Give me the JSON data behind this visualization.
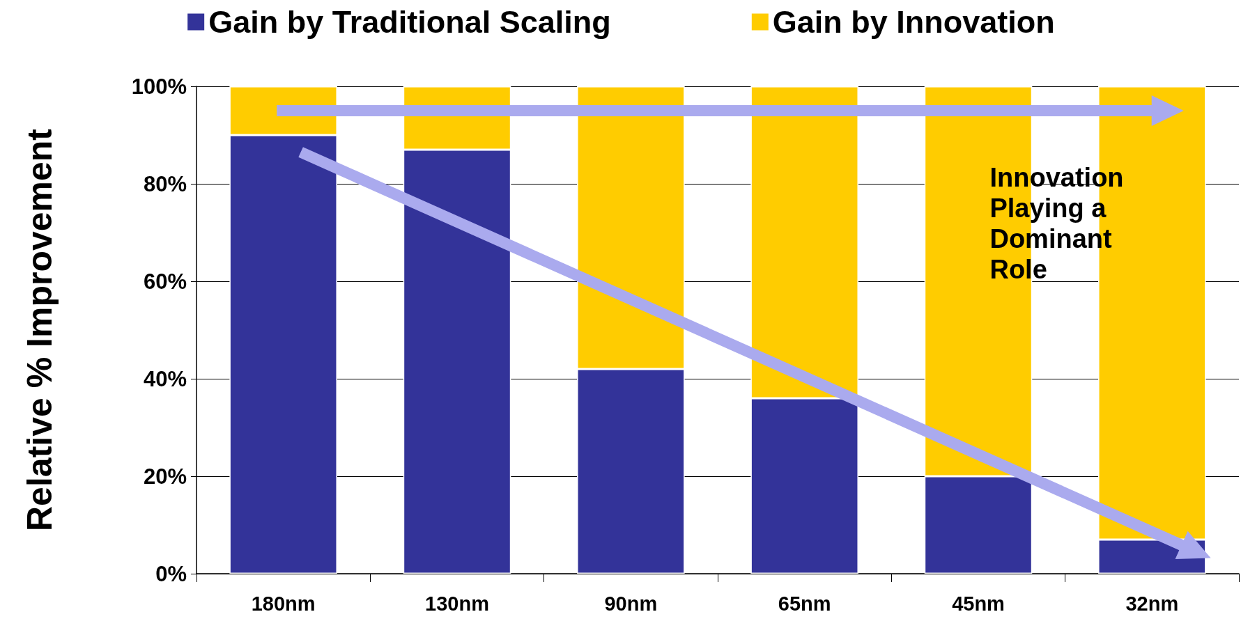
{
  "chart_data": {
    "type": "bar",
    "stacked": true,
    "ylabel": "Relative % Improvement",
    "categories": [
      "180nm",
      "130nm",
      "90nm",
      "65nm",
      "45nm",
      "32nm"
    ],
    "series": [
      {
        "name": "Gain by Traditional Scaling",
        "color": "#333399",
        "values": [
          90,
          87,
          42,
          36,
          20,
          7
        ]
      },
      {
        "name": "Gain by Innovation",
        "color": "#ffcc00",
        "values": [
          10,
          13,
          58,
          64,
          80,
          93
        ]
      }
    ],
    "ylim": [
      0,
      100
    ],
    "yticks": [
      {
        "value": 0,
        "label": "0%"
      },
      {
        "value": 20,
        "label": "20%"
      },
      {
        "value": 40,
        "label": "40%"
      },
      {
        "value": 60,
        "label": "60%"
      },
      {
        "value": 80,
        "label": "80%"
      },
      {
        "value": 100,
        "label": "100%"
      }
    ],
    "grid": "y",
    "legend": "top",
    "annotations": [
      "Innovation Playing a Dominant Role"
    ]
  }
}
